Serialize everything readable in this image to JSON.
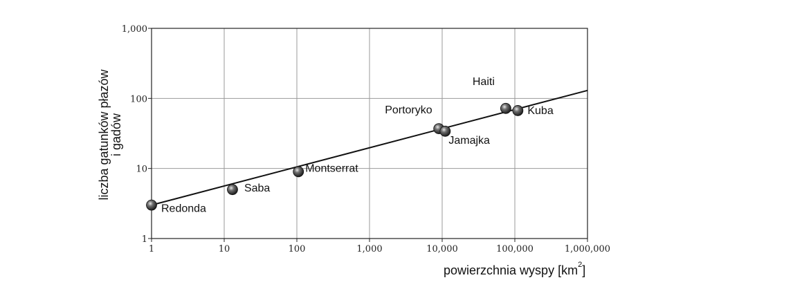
{
  "chart_data": {
    "type": "scatter",
    "title": "",
    "xlabel": "powierzchnia wyspy [km",
    "xlabel_superscript": "2",
    "xlabel_suffix": "]",
    "ylabel_lines": [
      "liczba gatunków płazów",
      "i gadów"
    ],
    "x_scale": "log",
    "y_scale": "log",
    "xlim": [
      1,
      1000000
    ],
    "ylim": [
      1,
      1000
    ],
    "x_ticks": [
      1,
      10,
      100,
      1000,
      10000,
      100000,
      1000000
    ],
    "x_tick_labels": [
      "1",
      "10",
      "100",
      "1,000",
      "10,000",
      "100,000",
      "1,000,000"
    ],
    "y_ticks": [
      1,
      10,
      100,
      1000
    ],
    "y_tick_labels": [
      "1",
      "10",
      "100",
      "1,000"
    ],
    "grid": true,
    "points": [
      {
        "label": "Redonda",
        "x": 1,
        "y": 3
      },
      {
        "label": "Saba",
        "x": 13,
        "y": 5
      },
      {
        "label": "Montserrat",
        "x": 105,
        "y": 9
      },
      {
        "label": "Portoryko",
        "x": 9000,
        "y": 37
      },
      {
        "label": "Jamajka",
        "x": 11000,
        "y": 34
      },
      {
        "label": "Haiti",
        "x": 75000,
        "y": 72
      },
      {
        "label": "Kuba",
        "x": 110000,
        "y": 67
      }
    ],
    "fit_line": {
      "x": [
        1,
        1000000
      ],
      "y": [
        3,
        130
      ]
    },
    "colors": {
      "axis": "#222222",
      "grid": "#9a9a9a",
      "line": "#111111",
      "point": "#333333"
    }
  }
}
